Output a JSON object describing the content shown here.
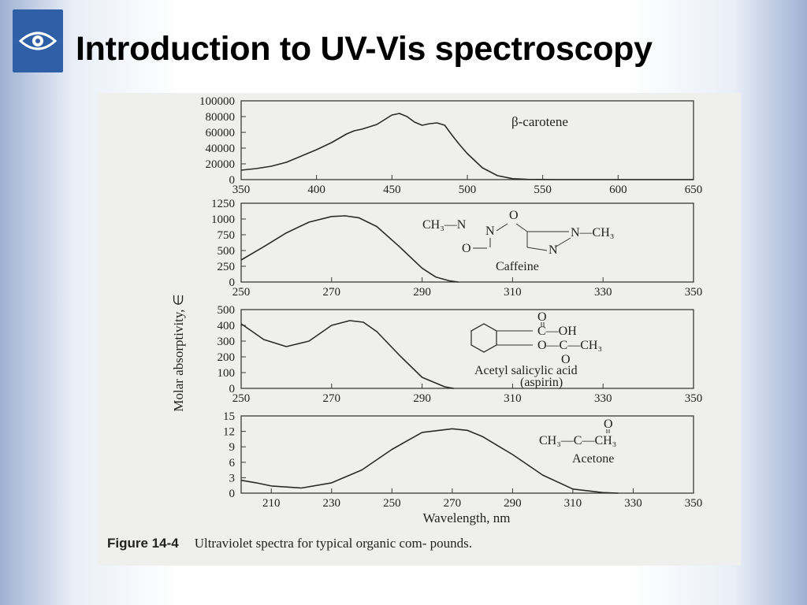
{
  "slide": {
    "title": "Introduction to UV-Vis spectroscopy",
    "logo_icon": "eye-logo-icon"
  },
  "figure": {
    "caption_label": "Figure 14-4",
    "caption_text": "Ultraviolet spectra for typical organic com- pounds."
  },
  "colors": {
    "curve": "#2a2a2a",
    "frame": "#3a3a3a",
    "logo_bg": "#2f5fa6"
  },
  "chart_data": [
    {
      "type": "line",
      "compound": "β-carotene",
      "xlim": [
        350,
        650
      ],
      "ylim": [
        0,
        100000
      ],
      "xticks": [
        350,
        400,
        450,
        500,
        550,
        600,
        650
      ],
      "yticks": [
        0,
        20000,
        40000,
        60000,
        80000,
        100000
      ],
      "x": [
        350,
        360,
        370,
        380,
        390,
        400,
        410,
        420,
        425,
        430,
        440,
        445,
        450,
        455,
        460,
        465,
        470,
        475,
        480,
        485,
        490,
        495,
        500,
        510,
        520,
        530,
        540,
        560,
        600,
        650
      ],
      "y": [
        12000,
        14000,
        17000,
        22000,
        30000,
        38000,
        47000,
        58000,
        62000,
        64000,
        70000,
        76000,
        82000,
        84000,
        80000,
        73000,
        69000,
        71000,
        72000,
        69000,
        56000,
        44000,
        33000,
        15000,
        5000,
        1200,
        300,
        0,
        0,
        0
      ]
    },
    {
      "type": "line",
      "compound": "Caffeine",
      "xlim": [
        250,
        350
      ],
      "ylim": [
        0,
        1250
      ],
      "xticks": [
        250,
        270,
        290,
        310,
        330,
        350
      ],
      "yticks": [
        0,
        250,
        500,
        750,
        1000,
        1250
      ],
      "x": [
        250,
        255,
        260,
        265,
        270,
        273,
        276,
        280,
        285,
        290,
        293,
        296,
        298
      ],
      "y": [
        350,
        560,
        780,
        950,
        1040,
        1050,
        1020,
        880,
        560,
        220,
        80,
        20,
        0
      ]
    },
    {
      "type": "line",
      "compound": "Acetyl salicylic acid (aspirin)",
      "xlim": [
        250,
        350
      ],
      "ylim": [
        0,
        500
      ],
      "xticks": [
        250,
        270,
        290,
        310,
        330,
        350
      ],
      "yticks": [
        0,
        100,
        200,
        300,
        400,
        500
      ],
      "x": [
        250,
        255,
        260,
        265,
        270,
        274,
        277,
        280,
        285,
        290,
        295,
        297
      ],
      "y": [
        410,
        310,
        265,
        300,
        400,
        430,
        420,
        360,
        210,
        70,
        10,
        0
      ]
    },
    {
      "type": "line",
      "compound": "Acetone",
      "xlabel": "Wavelength, nm",
      "xlim": [
        200,
        350
      ],
      "ylim": [
        0,
        15
      ],
      "xticks": [
        210,
        230,
        250,
        270,
        290,
        310,
        330,
        350
      ],
      "yticks": [
        0,
        3,
        6,
        9,
        12,
        15
      ],
      "x": [
        200,
        205,
        210,
        220,
        230,
        240,
        250,
        260,
        270,
        275,
        280,
        290,
        300,
        310,
        320,
        325
      ],
      "y": [
        2.5,
        2.0,
        1.4,
        1.0,
        2.0,
        4.5,
        8.5,
        11.8,
        12.5,
        12.2,
        11.0,
        7.5,
        3.5,
        0.8,
        0.1,
        0
      ]
    }
  ],
  "ylabel": "Molar absorptivity, ∈",
  "annotations": {
    "beta_carotene": "β-carotene",
    "caffeine_structure": {
      "top_o": "O",
      "left_group": "CH₃—N",
      "right_group": "N—CH₃",
      "bottom_left": "O",
      "ring_n": "N",
      "ring_n2": "N",
      "name": "Caffeine"
    },
    "aspirin_structure": {
      "o_top": "O",
      "c_top": "C—OH",
      "o_c_ch3": "O—C—CH₃",
      "o_bottom": "O",
      "name_line1": "Acetyl salicylic acid",
      "name_line2": "(aspirin)"
    },
    "acetone_structure": {
      "o": "O",
      "formula": "CH₃—C—CH₃",
      "name": "Acetone"
    }
  }
}
